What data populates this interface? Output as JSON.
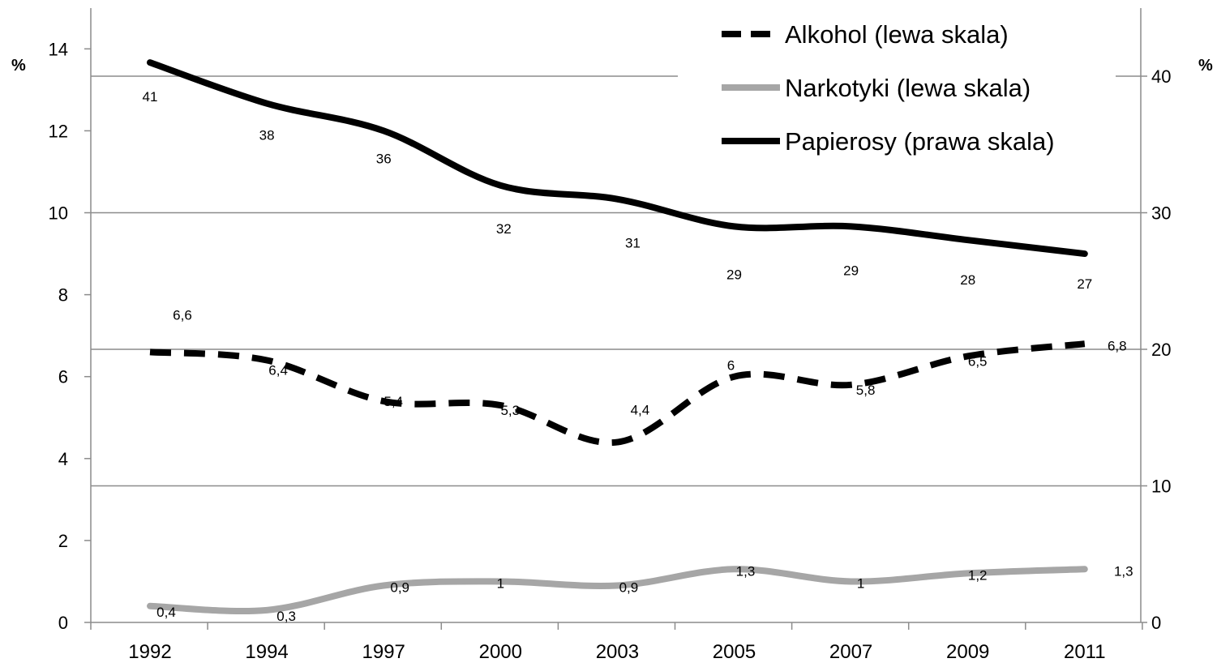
{
  "chart_data": {
    "type": "line",
    "title": "",
    "x": [
      "1992",
      "1994",
      "1997",
      "2000",
      "2003",
      "2005",
      "2007",
      "2009",
      "2011"
    ],
    "y_left": {
      "label": "%",
      "range": [
        0,
        14
      ],
      "ticks": [
        "0",
        "2",
        "4",
        "6",
        "8",
        "10",
        "12",
        "14"
      ]
    },
    "y_right": {
      "label": "%",
      "range": [
        0,
        42
      ],
      "ticks": [
        "0",
        "10",
        "20",
        "30",
        "40"
      ]
    },
    "grid": "horizontal lines at right-axis ticks",
    "legend_position": "top-right",
    "series": [
      {
        "name": "Alkohol (lewa skala)",
        "axis": "left",
        "style": "dashed-black",
        "color": "#000000",
        "values": [
          6.6,
          6.4,
          5.4,
          5.3,
          4.4,
          6.0,
          5.8,
          6.5,
          6.8
        ],
        "labels": [
          "6,6",
          "6,4",
          "5,4",
          "5,3",
          "4,4",
          "6",
          "5,8",
          "6,5",
          "6,8"
        ]
      },
      {
        "name": "Narkotyki (lewa skala)",
        "axis": "left",
        "style": "solid-gray",
        "color": "#a6a6a6",
        "values": [
          0.4,
          0.3,
          0.9,
          1.0,
          0.9,
          1.3,
          1.0,
          1.2,
          1.3
        ],
        "labels": [
          "0,4",
          "0,3",
          "0,9",
          "1",
          "0,9",
          "1,3",
          "1",
          "1,2",
          "1,3"
        ]
      },
      {
        "name": "Papierosy (prawa skala)",
        "axis": "right",
        "style": "solid-black",
        "color": "#000000",
        "values": [
          41,
          38,
          36,
          32,
          31,
          29,
          29,
          28,
          27
        ],
        "labels": [
          "41",
          "38",
          "36",
          "32",
          "31",
          "29",
          "29",
          "28",
          "27"
        ]
      }
    ]
  }
}
